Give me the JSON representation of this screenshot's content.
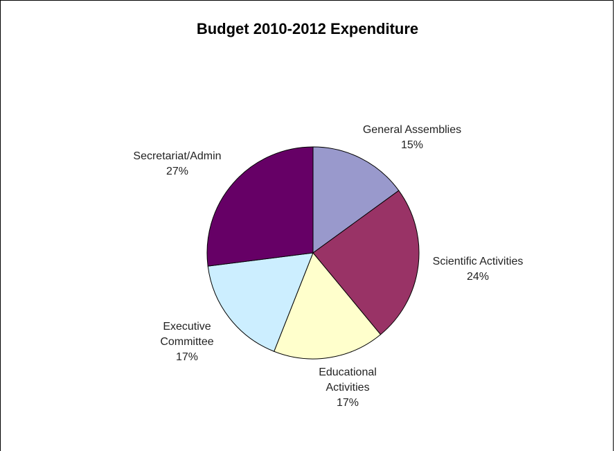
{
  "chart_data": {
    "type": "pie",
    "title": "Budget 2010-2012 Expenditure",
    "slices": [
      {
        "name": "General Assemblies",
        "value": 15,
        "label": "15%",
        "color": "#9999cc"
      },
      {
        "name": "Scientific Activities",
        "value": 24,
        "label": "24%",
        "color": "#993366"
      },
      {
        "name": "Educational Activities",
        "value": 17,
        "label": "17%",
        "color": "#ffffcc"
      },
      {
        "name": "Executive Committee",
        "value": 17,
        "label": "17%",
        "color": "#cceeff"
      },
      {
        "name": "Secretariat/Admin",
        "value": 27,
        "label": "27%",
        "color": "#660066"
      }
    ],
    "start_angle": "12 o'clock",
    "direction": "clockwise"
  }
}
